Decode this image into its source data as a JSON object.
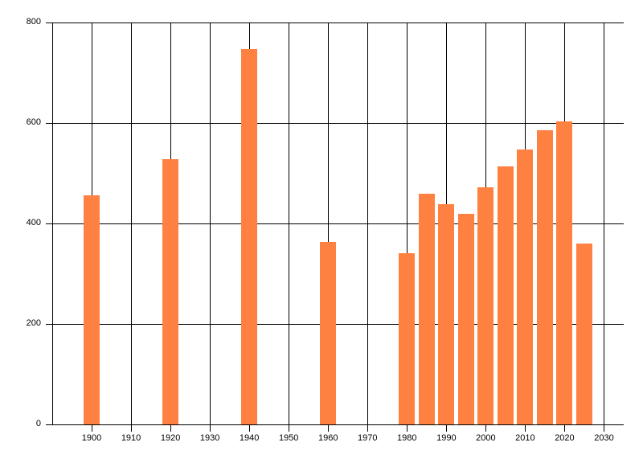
{
  "chart_data": {
    "type": "bar",
    "title": "",
    "xlabel": "",
    "ylabel": "",
    "x": [
      1900,
      1920,
      1940,
      1960,
      1980,
      1985,
      1990,
      1995,
      2000,
      2005,
      2010,
      2015,
      2020,
      2025
    ],
    "values": [
      456,
      528,
      748,
      364,
      341,
      459,
      438,
      419,
      472,
      513,
      548,
      585,
      603,
      360
    ],
    "x_ticks": [
      1900,
      1910,
      1920,
      1930,
      1940,
      1950,
      1960,
      1970,
      1980,
      1990,
      2000,
      2010,
      2020,
      2030
    ],
    "y_ticks": [
      0,
      200,
      400,
      600,
      800
    ],
    "xlim": [
      1890,
      2035
    ],
    "ylim": [
      0,
      800
    ],
    "grid": true,
    "legend_position": "none",
    "bar_width_years": 4.08,
    "bar_color": "#FF8142",
    "grid_color": "#000000",
    "text_color": "#000000",
    "background_color": "#FFFFFF"
  }
}
